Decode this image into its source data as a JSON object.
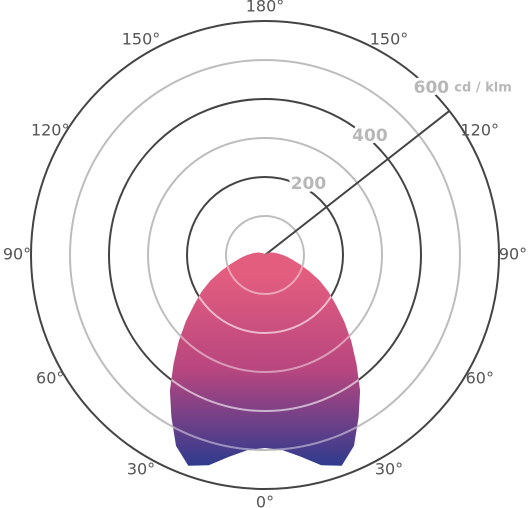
{
  "chart_data": {
    "type": "polar",
    "r_unit": "cd / klm",
    "rlim": [
      0,
      600
    ],
    "rticks": [
      200,
      400,
      600
    ],
    "rminor": [
      100,
      300,
      500
    ],
    "angle_ticks": [
      {
        "value": 0,
        "label": "0°"
      },
      {
        "value": -30,
        "label": "30°"
      },
      {
        "value": 30,
        "label": "30°"
      },
      {
        "value": -60,
        "label": "60°"
      },
      {
        "value": 60,
        "label": "60°"
      },
      {
        "value": -90,
        "label": "90°"
      },
      {
        "value": 90,
        "label": "90°"
      },
      {
        "value": -120,
        "label": "120°"
      },
      {
        "value": 120,
        "label": "120°"
      },
      {
        "value": -150,
        "label": "150°"
      },
      {
        "value": 150,
        "label": "150°"
      },
      {
        "value": 180,
        "label": "180°"
      }
    ],
    "x": [
      -180,
      -160,
      -140,
      -120,
      -110,
      -100,
      -90,
      -85,
      -80,
      -75,
      -70,
      -65,
      -60,
      -55,
      -50,
      -45,
      -40,
      -35,
      -30,
      -25,
      -20,
      -15,
      -10,
      -5,
      0,
      5,
      10,
      15,
      20,
      25,
      30,
      35,
      40,
      45,
      50,
      55,
      60,
      65,
      70,
      75,
      80,
      85,
      90,
      100,
      110,
      120,
      140,
      160,
      180
    ],
    "values": [
      0,
      2,
      5,
      12,
      19,
      29,
      46,
      58,
      72,
      93,
      120,
      154,
      188,
      222,
      265,
      313,
      365,
      425,
      480,
      540,
      575,
      558,
      525,
      502,
      495,
      502,
      525,
      558,
      575,
      540,
      480,
      425,
      365,
      313,
      265,
      222,
      188,
      154,
      120,
      93,
      72,
      58,
      46,
      29,
      19,
      12,
      5,
      2,
      0
    ],
    "colors": [
      "#e35d7f",
      "#2f3b8e"
    ]
  }
}
